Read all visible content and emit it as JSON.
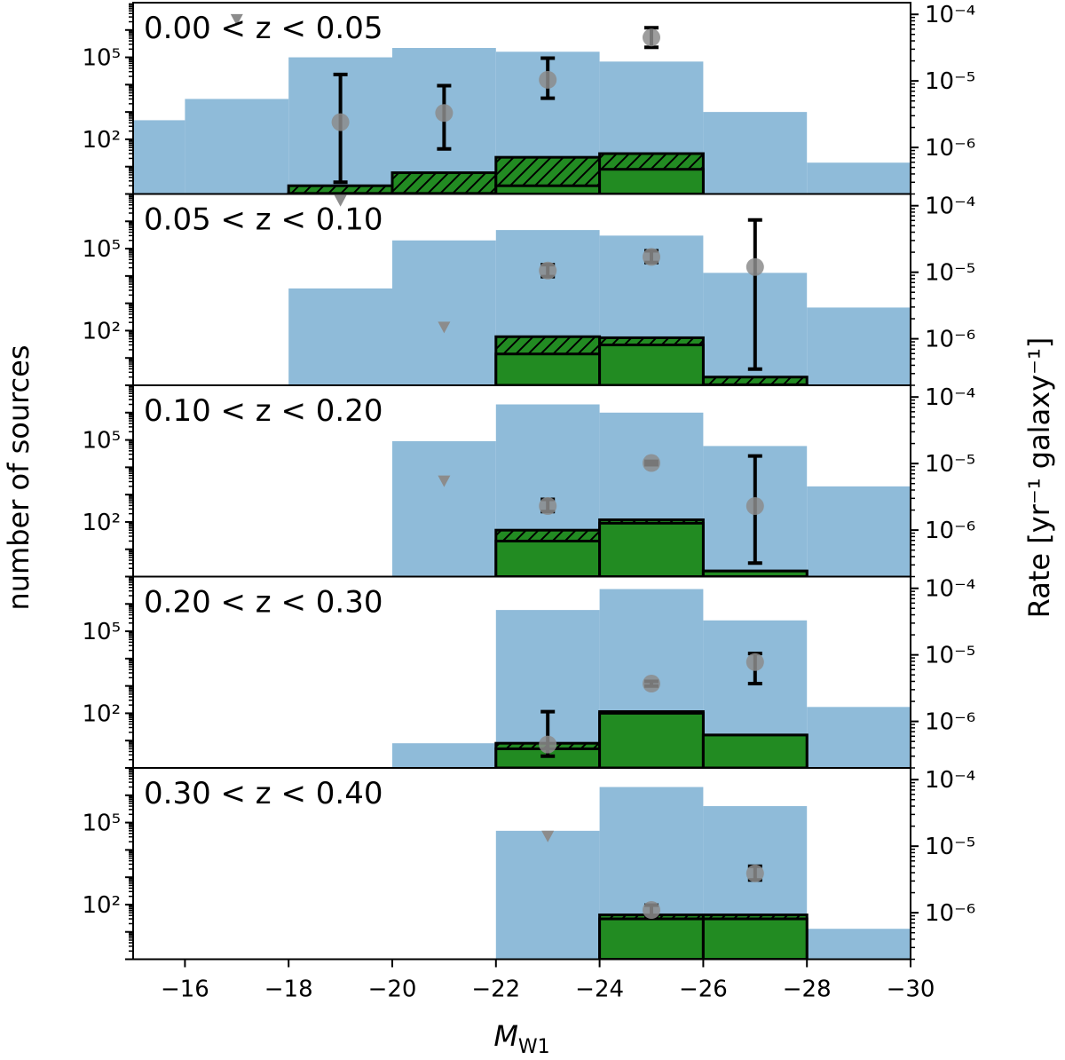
{
  "chart_data": {
    "type": "bar",
    "xlabel_symbol": "M",
    "xlabel_sub": "W1",
    "ylabel_left": "number of sources",
    "ylabel_right": "Rate [yr⁻¹ galaxy⁻¹]",
    "xlim": [
      -15,
      -30
    ],
    "xticks": [
      -16,
      -18,
      -20,
      -22,
      -24,
      -26,
      -28,
      -30
    ],
    "xtick_labels": [
      "−16",
      "−18",
      "−20",
      "−22",
      "−24",
      "−26",
      "−28",
      "−30"
    ],
    "left_yaxis": {
      "scale": "log",
      "ylim": [
        1,
        10000000
      ],
      "ticks": [
        100000,
        100
      ],
      "tick_labels": [
        "10⁵",
        "10²"
      ]
    },
    "right_yaxis": {
      "scale": "log",
      "ylim": [
        2e-07,
        0.00015
      ],
      "ticks": [
        0.0001,
        1e-05,
        1e-06
      ],
      "tick_labels": [
        "10⁻⁴",
        "10⁻⁵",
        "10⁻⁶"
      ]
    },
    "colors": {
      "galaxies": "#8fbbd9",
      "tde": "#228b22",
      "rate_point": "#8c8c8c",
      "errorbar": "#000000",
      "upper_limit": "#8c8c8c"
    },
    "panels": [
      {
        "label": "0.00 < z < 0.05",
        "galaxies": [
          {
            "x0": -15,
            "x1": -16,
            "v": 500
          },
          {
            "x0": -16,
            "x1": -18,
            "v": 3000
          },
          {
            "x0": -18,
            "x1": -20,
            "v": 100000
          },
          {
            "x0": -20,
            "x1": -22,
            "v": 220000
          },
          {
            "x0": -22,
            "x1": -24,
            "v": 160000
          },
          {
            "x0": -24,
            "x1": -26,
            "v": 70000
          },
          {
            "x0": -26,
            "x1": -28,
            "v": 1000
          },
          {
            "x0": -28,
            "x1": -30,
            "v": 14
          }
        ],
        "tde_solid": [
          {
            "x0": -18,
            "x1": -20,
            "v": 1.05
          },
          {
            "x0": -20,
            "x1": -22,
            "v": 1.05
          },
          {
            "x0": -22,
            "x1": -24,
            "v": 2
          },
          {
            "x0": -24,
            "x1": -26,
            "v": 8
          }
        ],
        "tde_hatched": [
          {
            "x0": -18,
            "x1": -20,
            "v": 2
          },
          {
            "x0": -20,
            "x1": -22,
            "v": 6
          },
          {
            "x0": -22,
            "x1": -24,
            "v": 22
          },
          {
            "x0": -24,
            "x1": -26,
            "v": 30
          }
        ],
        "rates": [
          {
            "x": -19,
            "y": 2.4e-06,
            "lo": 3e-07,
            "hi": 1.25e-05
          },
          {
            "x": -21,
            "y": 3.3e-06,
            "lo": 9.5e-07,
            "hi": 8.5e-06
          },
          {
            "x": -23,
            "y": 1.04e-05,
            "lo": 5.5e-06,
            "hi": 2.2e-05
          },
          {
            "x": -25,
            "y": 4.5e-05,
            "lo": 3.2e-05,
            "hi": 6.3e-05
          }
        ],
        "upper_limits": [
          {
            "x": -17,
            "y": 8.4e-05
          },
          {
            "x": -19,
            "y": 1.6e-07
          }
        ]
      },
      {
        "label": "0.05 < z < 0.10",
        "galaxies": [
          {
            "x0": -18,
            "x1": -20,
            "v": 3500
          },
          {
            "x0": -20,
            "x1": -22,
            "v": 200000
          },
          {
            "x0": -22,
            "x1": -24,
            "v": 480000
          },
          {
            "x0": -24,
            "x1": -26,
            "v": 300000
          },
          {
            "x0": -26,
            "x1": -28,
            "v": 13000
          },
          {
            "x0": -28,
            "x1": -30,
            "v": 700
          }
        ],
        "tde_solid": [
          {
            "x0": -22,
            "x1": -24,
            "v": 14
          },
          {
            "x0": -24,
            "x1": -26,
            "v": 30
          },
          {
            "x0": -26,
            "x1": -28,
            "v": 1.05
          }
        ],
        "tde_hatched": [
          {
            "x0": -22,
            "x1": -24,
            "v": 60
          },
          {
            "x0": -24,
            "x1": -26,
            "v": 55
          },
          {
            "x0": -26,
            "x1": -28,
            "v": 2
          }
        ],
        "rates": [
          {
            "x": -23,
            "y": 1.06e-05,
            "lo": 8.6e-06,
            "hi": 1.3e-05
          },
          {
            "x": -25,
            "y": 1.7e-05,
            "lo": 1.4e-05,
            "hi": 2.1e-05
          },
          {
            "x": -27,
            "y": 1.2e-05,
            "lo": 3.5e-07,
            "hi": 6.1e-05
          }
        ],
        "upper_limits": [
          {
            "x": -21,
            "y": 1.5e-06
          }
        ]
      },
      {
        "label": "0.10 < z < 0.20",
        "galaxies": [
          {
            "x0": -20,
            "x1": -22,
            "v": 90000
          },
          {
            "x0": -22,
            "x1": -24,
            "v": 2000000
          },
          {
            "x0": -24,
            "x1": -26,
            "v": 1000000
          },
          {
            "x0": -26,
            "x1": -28,
            "v": 60000
          },
          {
            "x0": -28,
            "x1": -30,
            "v": 2000
          }
        ],
        "tde_solid": [
          {
            "x0": -22,
            "x1": -24,
            "v": 20
          },
          {
            "x0": -24,
            "x1": -26,
            "v": 90
          },
          {
            "x0": -26,
            "x1": -28,
            "v": 1.6
          }
        ],
        "tde_hatched": [
          {
            "x0": -22,
            "x1": -24,
            "v": 50
          },
          {
            "x0": -24,
            "x1": -26,
            "v": 120
          },
          {
            "x0": -26,
            "x1": -28,
            "v": 1.6
          }
        ],
        "rates": [
          {
            "x": -23,
            "y": 2.3e-06,
            "lo": 1.9e-06,
            "hi": 2.9e-06
          },
          {
            "x": -25,
            "y": 1.02e-05,
            "lo": 9.6e-06,
            "hi": 1.08e-05
          },
          {
            "x": -27,
            "y": 2.3e-06,
            "lo": 3.2e-07,
            "hi": 1.3e-05
          }
        ],
        "upper_limits": [
          {
            "x": -21,
            "y": 5.5e-06
          }
        ]
      },
      {
        "label": "0.20 < z < 0.30",
        "galaxies": [
          {
            "x0": -20,
            "x1": -22,
            "v": 8
          },
          {
            "x0": -22,
            "x1": -24,
            "v": 600000
          },
          {
            "x0": -24,
            "x1": -26,
            "v": 3500000
          },
          {
            "x0": -26,
            "x1": -28,
            "v": 250000
          },
          {
            "x0": -28,
            "x1": -30,
            "v": 170
          }
        ],
        "tde_solid": [
          {
            "x0": -22,
            "x1": -24,
            "v": 5
          },
          {
            "x0": -24,
            "x1": -26,
            "v": 100
          },
          {
            "x0": -26,
            "x1": -28,
            "v": 16
          }
        ],
        "tde_hatched": [
          {
            "x0": -22,
            "x1": -24,
            "v": 8
          },
          {
            "x0": -24,
            "x1": -26,
            "v": 115
          },
          {
            "x0": -26,
            "x1": -28,
            "v": 16
          }
        ],
        "rates": [
          {
            "x": -23,
            "y": 4.5e-07,
            "lo": 3e-07,
            "hi": 1.4e-06
          },
          {
            "x": -25,
            "y": 3.7e-06,
            "lo": 3.4e-06,
            "hi": 4e-06
          },
          {
            "x": -27,
            "y": 7.8e-06,
            "lo": 3.7e-06,
            "hi": 1.05e-05
          }
        ],
        "upper_limits": []
      },
      {
        "label": "0.30 < z < 0.40",
        "galaxies": [
          {
            "x0": -22,
            "x1": -24,
            "v": 50000
          },
          {
            "x0": -24,
            "x1": -26,
            "v": 2000000
          },
          {
            "x0": -26,
            "x1": -28,
            "v": 400000
          },
          {
            "x0": -28,
            "x1": -30,
            "v": 13
          }
        ],
        "tde_solid": [
          {
            "x0": -24,
            "x1": -26,
            "v": 30
          },
          {
            "x0": -26,
            "x1": -28,
            "v": 30
          }
        ],
        "tde_hatched": [
          {
            "x0": -24,
            "x1": -26,
            "v": 42
          },
          {
            "x0": -26,
            "x1": -28,
            "v": 42
          }
        ],
        "rates": [
          {
            "x": -25,
            "y": 1.1e-06,
            "lo": 8.5e-07,
            "hi": 1.3e-06
          },
          {
            "x": -27,
            "y": 3.9e-06,
            "lo": 3.1e-06,
            "hi": 5e-06
          }
        ],
        "upper_limits": [
          {
            "x": -23,
            "y": 1.42e-05
          }
        ]
      }
    ]
  }
}
